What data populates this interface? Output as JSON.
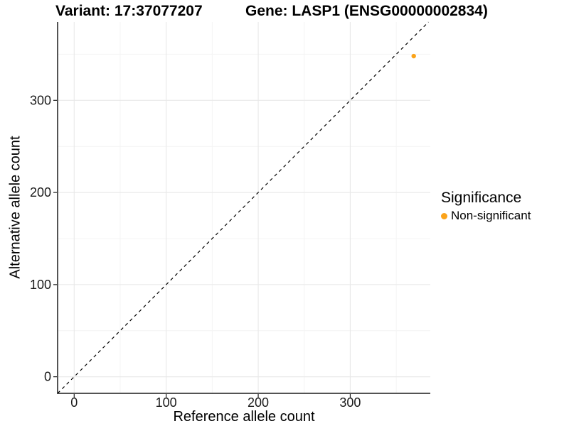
{
  "chart_data": {
    "type": "scatter",
    "title_left": "Variant: 17:37077207",
    "title_right": "Gene: LASP1 (ENSG00000002834)",
    "xlabel": "Reference allele count",
    "ylabel": "Alternative allele count",
    "xlim": [
      -18,
      387
    ],
    "ylim": [
      -18,
      385
    ],
    "xticks": [
      0,
      100,
      200,
      300
    ],
    "yticks": [
      0,
      100,
      200,
      300
    ],
    "minor_ticks": [
      50,
      150,
      250,
      350
    ],
    "grid": true,
    "identity_line": {
      "type": "dashed",
      "equation": "y = x"
    },
    "series": [
      {
        "name": "Non-significant",
        "points": [
          {
            "x": 369,
            "y": 348
          }
        ]
      }
    ],
    "legend": {
      "title": "Significance",
      "position": "right",
      "entries": [
        {
          "label": "Non-significant",
          "color": "#FBA319"
        }
      ]
    },
    "style": {
      "point_color": "#FBA319",
      "axis_color": "#1a1a1a",
      "tick_label_color": "#1a1a1a",
      "major_grid_color": "#e8e8e8",
      "minor_grid_color": "#f4f4f4",
      "identity_line_color": "#000000",
      "background": "#ffffff"
    }
  }
}
